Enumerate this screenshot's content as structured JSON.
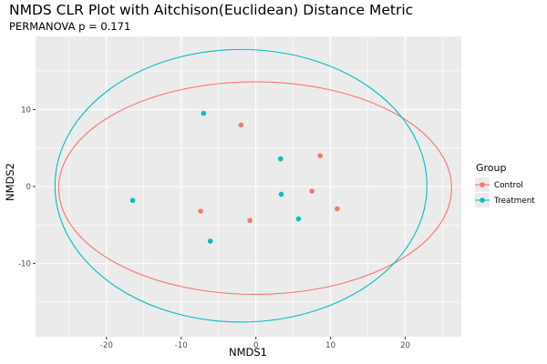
{
  "chart_data": {
    "type": "scatter",
    "title": "NMDS CLR Plot with Aitchison(Euclidean) Distance Metric",
    "subtitle": "PERMANOVA p = 0.171",
    "xlabel": "NMDS1",
    "ylabel": "NMDS2",
    "xlim": [
      -29.5,
      27.5
    ],
    "ylim": [
      -19.5,
      19.5
    ],
    "xticks": [
      -20,
      -10,
      0,
      10,
      20
    ],
    "yticks": [
      -10,
      0,
      10
    ],
    "grid": true,
    "legend": {
      "title": "Group",
      "position": "right"
    },
    "series": [
      {
        "name": "Control",
        "color": "#F8766D",
        "points": [
          {
            "x": -2.0,
            "y": 8.0
          },
          {
            "x": 8.6,
            "y": 4.0
          },
          {
            "x": 7.5,
            "y": -0.6
          },
          {
            "x": 10.9,
            "y": -2.9
          },
          {
            "x": -7.4,
            "y": -3.2
          },
          {
            "x": -0.8,
            "y": -4.4
          }
        ],
        "ellipse": {
          "cx": -0.1,
          "cy": -0.2,
          "rx": 26.3,
          "ry": 13.8,
          "angle": 0
        }
      },
      {
        "name": "Treatment",
        "color": "#00BFC4",
        "points": [
          {
            "x": -7.0,
            "y": 9.5
          },
          {
            "x": 3.3,
            "y": 3.6
          },
          {
            "x": 3.4,
            "y": -1.0
          },
          {
            "x": 5.7,
            "y": -4.2
          },
          {
            "x": -16.5,
            "y": -1.8
          },
          {
            "x": -6.1,
            "y": -7.1
          }
        ],
        "ellipse": {
          "cx": -2.0,
          "cy": 0.1,
          "rx": 24.9,
          "ry": 17.7,
          "angle": 0
        }
      }
    ]
  }
}
